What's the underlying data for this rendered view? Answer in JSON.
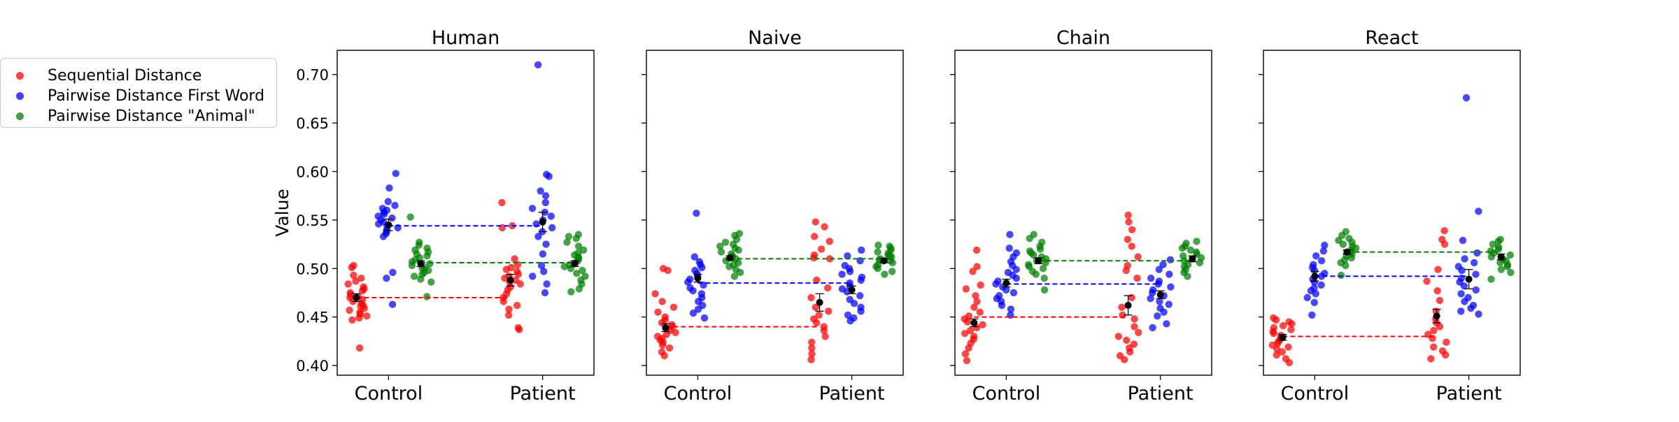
{
  "legend": [
    {
      "label": "Sequential Distance",
      "color": "#ff0000"
    },
    {
      "label": "Pairwise Distance First Word",
      "color": "#0000ff"
    },
    {
      "label": "Pairwise Distance \"Animal\"",
      "color": "#008000"
    }
  ],
  "chart_data": {
    "type": "scatter",
    "ylabel": "Value",
    "ylim": [
      0.39,
      0.725
    ],
    "yticks": [
      0.4,
      0.45,
      0.5,
      0.55,
      0.6,
      0.65,
      0.7
    ],
    "categories": [
      "Control",
      "Patient"
    ],
    "legend_position": "upper-left outside",
    "panels": [
      {
        "title": "Human",
        "series": [
          {
            "name": "Sequential Distance",
            "color": "#ff0000",
            "control": [
              0.418,
              0.447,
              0.449,
              0.451,
              0.453,
              0.455,
              0.457,
              0.459,
              0.461,
              0.462,
              0.464,
              0.466,
              0.468,
              0.47,
              0.471,
              0.473,
              0.475,
              0.477,
              0.479,
              0.481,
              0.484,
              0.487,
              0.49,
              0.493,
              0.501,
              0.503
            ],
            "patient": [
              0.437,
              0.439,
              0.452,
              0.458,
              0.462,
              0.466,
              0.47,
              0.474,
              0.478,
              0.481,
              0.484,
              0.486,
              0.488,
              0.49,
              0.492,
              0.494,
              0.497,
              0.499,
              0.501,
              0.504,
              0.51,
              0.542,
              0.544,
              0.568
            ],
            "control_mean": 0.47,
            "patient_mean": 0.488,
            "control_err": 0.004,
            "patient_err": 0.006,
            "ref": 0.47
          },
          {
            "name": "Pairwise Distance First Word",
            "color": "#0000ff",
            "control": [
              0.463,
              0.49,
              0.496,
              0.533,
              0.536,
              0.538,
              0.54,
              0.542,
              0.544,
              0.546,
              0.548,
              0.55,
              0.552,
              0.554,
              0.556,
              0.558,
              0.56,
              0.562,
              0.565,
              0.569,
              0.583,
              0.598
            ],
            "patient": [
              0.475,
              0.484,
              0.492,
              0.497,
              0.503,
              0.515,
              0.525,
              0.533,
              0.538,
              0.542,
              0.546,
              0.55,
              0.554,
              0.558,
              0.562,
              0.568,
              0.575,
              0.58,
              0.595,
              0.597,
              0.71
            ],
            "control_mean": 0.545,
            "patient_mean": 0.548,
            "control_err": 0.006,
            "patient_err": 0.01,
            "ref": 0.544
          },
          {
            "name": "Pairwise Distance \"Animal\"",
            "color": "#008000",
            "control": [
              0.471,
              0.486,
              0.489,
              0.492,
              0.494,
              0.496,
              0.498,
              0.5,
              0.501,
              0.503,
              0.505,
              0.507,
              0.509,
              0.511,
              0.513,
              0.515,
              0.517,
              0.519,
              0.521,
              0.524,
              0.527,
              0.553
            ],
            "patient": [
              0.476,
              0.479,
              0.484,
              0.488,
              0.492,
              0.495,
              0.498,
              0.5,
              0.502,
              0.504,
              0.506,
              0.508,
              0.51,
              0.512,
              0.514,
              0.516,
              0.519,
              0.523,
              0.527,
              0.531,
              0.533,
              0.535
            ],
            "control_mean": 0.505,
            "patient_mean": 0.505,
            "control_err": 0.003,
            "patient_err": 0.003,
            "ref": 0.506
          }
        ]
      },
      {
        "title": "Naive",
        "series": [
          {
            "name": "Sequential Distance",
            "color": "#ff0000",
            "control": [
              0.41,
              0.414,
              0.418,
              0.421,
              0.424,
              0.426,
              0.428,
              0.43,
              0.432,
              0.434,
              0.436,
              0.438,
              0.44,
              0.442,
              0.444,
              0.447,
              0.45,
              0.455,
              0.46,
              0.466,
              0.474,
              0.498,
              0.5
            ],
            "patient": [
              0.406,
              0.412,
              0.418,
              0.424,
              0.43,
              0.436,
              0.44,
              0.444,
              0.448,
              0.452,
              0.456,
              0.46,
              0.47,
              0.48,
              0.488,
              0.51,
              0.511,
              0.514,
              0.52,
              0.528,
              0.533,
              0.543,
              0.548
            ],
            "control_mean": 0.439,
            "patient_mean": 0.465,
            "control_err": 0.004,
            "patient_err": 0.009,
            "ref": 0.44
          },
          {
            "name": "Pairwise Distance First Word",
            "color": "#0000ff",
            "control": [
              0.449,
              0.454,
              0.458,
              0.462,
              0.466,
              0.47,
              0.474,
              0.477,
              0.48,
              0.483,
              0.486,
              0.489,
              0.492,
              0.495,
              0.498,
              0.501,
              0.504,
              0.507,
              0.512,
              0.557
            ],
            "patient": [
              0.446,
              0.449,
              0.452,
              0.456,
              0.46,
              0.464,
              0.468,
              0.472,
              0.476,
              0.479,
              0.482,
              0.485,
              0.488,
              0.491,
              0.494,
              0.497,
              0.5,
              0.503,
              0.508,
              0.513,
              0.519
            ],
            "control_mean": 0.49,
            "patient_mean": 0.478,
            "control_err": 0.004,
            "patient_err": 0.004,
            "ref": 0.485
          },
          {
            "name": "Pairwise Distance \"Animal\"",
            "color": "#008000",
            "control": [
              0.492,
              0.496,
              0.499,
              0.502,
              0.504,
              0.506,
              0.508,
              0.51,
              0.511,
              0.513,
              0.515,
              0.517,
              0.519,
              0.521,
              0.523,
              0.525,
              0.527,
              0.53,
              0.534,
              0.536
            ],
            "patient": [
              0.494,
              0.497,
              0.5,
              0.502,
              0.504,
              0.506,
              0.508,
              0.509,
              0.51,
              0.512,
              0.513,
              0.514,
              0.516,
              0.517,
              0.519,
              0.521,
              0.523,
              0.524
            ],
            "control_mean": 0.511,
            "patient_mean": 0.508,
            "control_err": 0.002,
            "patient_err": 0.002,
            "ref": 0.51
          }
        ]
      },
      {
        "title": "Chain",
        "series": [
          {
            "name": "Sequential Distance",
            "color": "#ff0000",
            "control": [
              0.405,
              0.412,
              0.418,
              0.423,
              0.427,
              0.43,
              0.433,
              0.436,
              0.439,
              0.442,
              0.445,
              0.448,
              0.451,
              0.455,
              0.46,
              0.466,
              0.472,
              0.479,
              0.483,
              0.497,
              0.502,
              0.519
            ],
            "patient": [
              0.406,
              0.41,
              0.414,
              0.418,
              0.422,
              0.426,
              0.43,
              0.434,
              0.44,
              0.448,
              0.452,
              0.46,
              0.47,
              0.49,
              0.498,
              0.503,
              0.512,
              0.523,
              0.53,
              0.54,
              0.548,
              0.555
            ],
            "control_mean": 0.444,
            "patient_mean": 0.462,
            "control_err": 0.004,
            "patient_err": 0.01,
            "ref": 0.45
          },
          {
            "name": "Pairwise Distance First Word",
            "color": "#0000ff",
            "control": [
              0.452,
              0.458,
              0.462,
              0.466,
              0.469,
              0.472,
              0.475,
              0.478,
              0.481,
              0.484,
              0.487,
              0.49,
              0.493,
              0.496,
              0.499,
              0.503,
              0.507,
              0.512,
              0.516,
              0.521,
              0.535
            ],
            "patient": [
              0.439,
              0.443,
              0.451,
              0.455,
              0.459,
              0.463,
              0.466,
              0.469,
              0.472,
              0.475,
              0.478,
              0.481,
              0.484,
              0.487,
              0.49,
              0.494,
              0.499,
              0.504,
              0.509
            ],
            "control_mean": 0.485,
            "patient_mean": 0.473,
            "control_err": 0.004,
            "patient_err": 0.004,
            "ref": 0.484
          },
          {
            "name": "Pairwise Distance \"Animal\"",
            "color": "#008000",
            "control": [
              0.478,
              0.49,
              0.494,
              0.497,
              0.5,
              0.502,
              0.504,
              0.506,
              0.508,
              0.51,
              0.512,
              0.514,
              0.516,
              0.518,
              0.52,
              0.523,
              0.527,
              0.531,
              0.535
            ],
            "patient": [
              0.492,
              0.496,
              0.499,
              0.502,
              0.504,
              0.506,
              0.508,
              0.51,
              0.511,
              0.513,
              0.515,
              0.517,
              0.519,
              0.521,
              0.523,
              0.526,
              0.528
            ],
            "control_mean": 0.508,
            "patient_mean": 0.51,
            "control_err": 0.003,
            "patient_err": 0.003,
            "ref": 0.508
          }
        ]
      },
      {
        "title": "React",
        "series": [
          {
            "name": "Sequential Distance",
            "color": "#ff0000",
            "control": [
              0.403,
              0.407,
              0.411,
              0.414,
              0.417,
              0.419,
              0.421,
              0.423,
              0.425,
              0.427,
              0.429,
              0.431,
              0.433,
              0.435,
              0.437,
              0.439,
              0.441,
              0.443,
              0.445,
              0.447,
              0.449
            ],
            "patient": [
              0.407,
              0.411,
              0.415,
              0.419,
              0.424,
              0.428,
              0.432,
              0.436,
              0.44,
              0.444,
              0.448,
              0.456,
              0.467,
              0.477,
              0.487,
              0.499,
              0.525,
              0.53,
              0.539
            ],
            "control_mean": 0.429,
            "patient_mean": 0.451,
            "control_err": 0.003,
            "patient_err": 0.007,
            "ref": 0.43
          },
          {
            "name": "Pairwise Distance First Word",
            "color": "#0000ff",
            "control": [
              0.452,
              0.465,
              0.47,
              0.474,
              0.477,
              0.48,
              0.483,
              0.486,
              0.489,
              0.492,
              0.495,
              0.498,
              0.501,
              0.504,
              0.508,
              0.513,
              0.518,
              0.524
            ],
            "patient": [
              0.453,
              0.456,
              0.459,
              0.462,
              0.466,
              0.47,
              0.474,
              0.478,
              0.482,
              0.486,
              0.49,
              0.494,
              0.498,
              0.502,
              0.506,
              0.51,
              0.516,
              0.529,
              0.559,
              0.676
            ],
            "control_mean": 0.492,
            "patient_mean": 0.489,
            "control_err": 0.005,
            "patient_err": 0.01,
            "ref": 0.492
          },
          {
            "name": "Pairwise Distance \"Animal\"",
            "color": "#008000",
            "control": [
              0.493,
              0.503,
              0.506,
              0.509,
              0.511,
              0.513,
              0.515,
              0.517,
              0.519,
              0.521,
              0.523,
              0.525,
              0.527,
              0.529,
              0.531,
              0.534,
              0.538
            ],
            "patient": [
              0.489,
              0.496,
              0.499,
              0.502,
              0.504,
              0.506,
              0.508,
              0.51,
              0.512,
              0.514,
              0.516,
              0.518,
              0.52,
              0.522,
              0.525,
              0.528,
              0.53
            ],
            "control_mean": 0.517,
            "patient_mean": 0.512,
            "control_err": 0.002,
            "patient_err": 0.003,
            "ref": 0.517
          }
        ]
      }
    ]
  }
}
